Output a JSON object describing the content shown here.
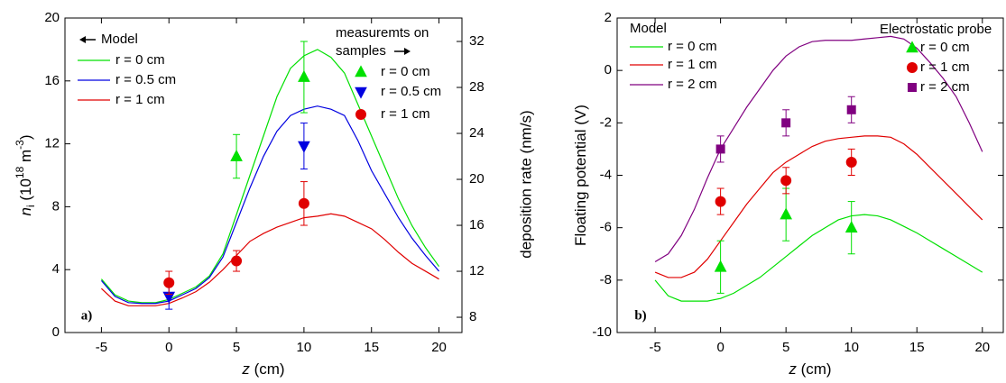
{
  "chart_data": [
    {
      "type": "line",
      "annotation": "a)",
      "xlabel": [
        "z",
        " (cm)"
      ],
      "ylabel": [
        "n",
        "i",
        " (10",
        "18",
        " m",
        "-3",
        ")"
      ],
      "y2label": "deposition rate (nm/s)",
      "xlim": [
        -7.7,
        21.7
      ],
      "xticks": [
        -5,
        0,
        5,
        10,
        15,
        20
      ],
      "ylim": [
        0,
        20
      ],
      "yticks": [
        0,
        4,
        8,
        12,
        16,
        20
      ],
      "y2lim": [
        6.67,
        34.04
      ],
      "y2ticks": [
        8,
        12,
        16,
        20,
        24,
        28,
        32
      ],
      "model_legend_title": "Model",
      "data_legend_title": [
        "measuremts on",
        "samples"
      ],
      "series": [
        {
          "name": "r = 0 cm",
          "type": "line",
          "color": "#00e000",
          "x": [
            -5,
            -4,
            -3,
            -2,
            -1,
            0,
            1,
            2,
            3,
            4,
            5,
            6,
            7,
            8,
            9,
            10,
            11,
            12,
            13,
            14,
            15,
            16,
            17,
            18,
            19,
            20
          ],
          "values": [
            3.4,
            2.4,
            2.0,
            1.9,
            1.9,
            2.1,
            2.5,
            2.9,
            3.6,
            5.0,
            7.5,
            10.0,
            12.5,
            15.0,
            16.8,
            17.6,
            18.0,
            17.5,
            16.5,
            14.5,
            12.5,
            10.5,
            8.5,
            6.8,
            5.4,
            4.2
          ]
        },
        {
          "name": "r = 0.5 cm",
          "type": "line",
          "color": "#0000e0",
          "x": [
            -5,
            -4,
            -3,
            -2,
            -1,
            0,
            1,
            2,
            3,
            4,
            5,
            6,
            7,
            8,
            9,
            10,
            11,
            12,
            13,
            14,
            15,
            16,
            17,
            18,
            19,
            20
          ],
          "values": [
            3.3,
            2.3,
            1.9,
            1.85,
            1.85,
            2.0,
            2.4,
            2.8,
            3.5,
            4.8,
            7.0,
            9.2,
            11.2,
            12.8,
            13.8,
            14.2,
            14.4,
            14.2,
            13.8,
            12.2,
            10.3,
            8.8,
            7.3,
            6.0,
            4.9,
            3.9
          ]
        },
        {
          "name": "r = 1 cm",
          "type": "line",
          "color": "#e00000",
          "x": [
            -5,
            -4,
            -3,
            -2,
            -1,
            0,
            1,
            2,
            3,
            4,
            5,
            6,
            7,
            8,
            9,
            10,
            11,
            12,
            13,
            14,
            15,
            16,
            17,
            18,
            19,
            20
          ],
          "values": [
            2.8,
            2.0,
            1.7,
            1.7,
            1.7,
            1.85,
            2.2,
            2.6,
            3.2,
            4.0,
            4.9,
            5.8,
            6.3,
            6.7,
            7.0,
            7.3,
            7.4,
            7.55,
            7.4,
            7.0,
            6.6,
            5.9,
            5.1,
            4.4,
            3.9,
            3.4
          ]
        },
        {
          "name": "r = 0 cm",
          "type": "scatter",
          "marker": "triangle-up",
          "color": "#00e000",
          "axis": "y2",
          "x": [
            5,
            10
          ],
          "values": [
            22.0,
            28.9
          ],
          "errors": [
            1.9,
            3.1
          ]
        },
        {
          "name": "r = 0.5 cm",
          "type": "scatter",
          "marker": "triangle-down",
          "color": "#0000e0",
          "axis": "y2",
          "x": [
            0,
            10
          ],
          "values": [
            9.8,
            22.9
          ],
          "errors": [
            1.1,
            2.0
          ]
        },
        {
          "name": "r = 1 cm",
          "type": "scatter",
          "marker": "circle",
          "color": "#e00000",
          "axis": "y2",
          "x": [
            0,
            5,
            10
          ],
          "values": [
            11.0,
            12.9,
            17.9
          ],
          "errors": [
            1.0,
            0.9,
            1.9
          ]
        }
      ]
    },
    {
      "type": "line",
      "annotation": "b)",
      "xlabel": [
        "z",
        " (cm)"
      ],
      "ylabel": [
        "Floating potential (V)"
      ],
      "xlim": [
        -7.9,
        21.6
      ],
      "xticks": [
        -5,
        0,
        5,
        10,
        15,
        20
      ],
      "ylim": [
        -10,
        2
      ],
      "yticks": [
        -10,
        -8,
        -6,
        -4,
        -2,
        0,
        2
      ],
      "model_legend_title": "Model",
      "data_legend_title": [
        "Electrostatic probe"
      ],
      "series": [
        {
          "name": "r = 0 cm",
          "type": "line",
          "color": "#00e000",
          "x": [
            -5,
            -4,
            -3,
            -2,
            -1,
            0,
            1,
            2,
            3,
            4,
            5,
            6,
            7,
            8,
            9,
            10,
            11,
            12,
            13,
            14,
            15,
            16,
            17,
            18,
            19,
            20
          ],
          "values": [
            -8.0,
            -8.6,
            -8.8,
            -8.8,
            -8.8,
            -8.7,
            -8.5,
            -8.2,
            -7.9,
            -7.5,
            -7.1,
            -6.7,
            -6.3,
            -6.0,
            -5.7,
            -5.55,
            -5.5,
            -5.55,
            -5.7,
            -5.95,
            -6.2,
            -6.5,
            -6.8,
            -7.1,
            -7.4,
            -7.7
          ]
        },
        {
          "name": "r = 1 cm",
          "type": "line",
          "color": "#e00000",
          "x": [
            -5,
            -4,
            -3,
            -2,
            -1,
            0,
            1,
            2,
            3,
            4,
            5,
            6,
            7,
            8,
            9,
            10,
            11,
            12,
            13,
            14,
            15,
            16,
            17,
            18,
            19,
            20
          ],
          "values": [
            -7.7,
            -7.9,
            -7.9,
            -7.7,
            -7.2,
            -6.5,
            -5.8,
            -5.1,
            -4.5,
            -3.9,
            -3.5,
            -3.2,
            -2.9,
            -2.7,
            -2.6,
            -2.55,
            -2.5,
            -2.5,
            -2.55,
            -2.8,
            -3.2,
            -3.7,
            -4.2,
            -4.7,
            -5.2,
            -5.7
          ]
        },
        {
          "name": "r = 2 cm",
          "type": "line",
          "color": "#800080",
          "x": [
            -5,
            -4,
            -3,
            -2,
            -1,
            0,
            1,
            2,
            3,
            4,
            5,
            6,
            7,
            8,
            9,
            10,
            11,
            12,
            13,
            14,
            15,
            16,
            17,
            18,
            19,
            20
          ],
          "values": [
            -7.3,
            -7.0,
            -6.3,
            -5.3,
            -4.1,
            -3.0,
            -2.2,
            -1.4,
            -0.7,
            0.0,
            0.55,
            0.9,
            1.1,
            1.15,
            1.15,
            1.15,
            1.2,
            1.25,
            1.3,
            1.2,
            0.85,
            0.3,
            -0.3,
            -1.0,
            -2.0,
            -3.1
          ]
        },
        {
          "name": "r = 0 cm",
          "type": "scatter",
          "marker": "triangle-up",
          "color": "#00e000",
          "x": [
            0,
            5,
            10
          ],
          "values": [
            -7.5,
            -5.5,
            -6.0
          ],
          "errors": [
            1,
            1,
            1
          ]
        },
        {
          "name": "r = 1 cm",
          "type": "scatter",
          "marker": "circle",
          "color": "#e00000",
          "x": [
            0,
            5,
            10
          ],
          "values": [
            -5.0,
            -4.2,
            -3.5
          ],
          "errors": [
            0.5,
            0.5,
            0.5
          ]
        },
        {
          "name": "r = 2 cm",
          "type": "scatter",
          "marker": "square",
          "color": "#800080",
          "x": [
            0,
            5,
            10
          ],
          "values": [
            -3.0,
            -2.0,
            -1.5
          ],
          "errors": [
            0.5,
            0.5,
            0.5
          ]
        }
      ]
    }
  ]
}
